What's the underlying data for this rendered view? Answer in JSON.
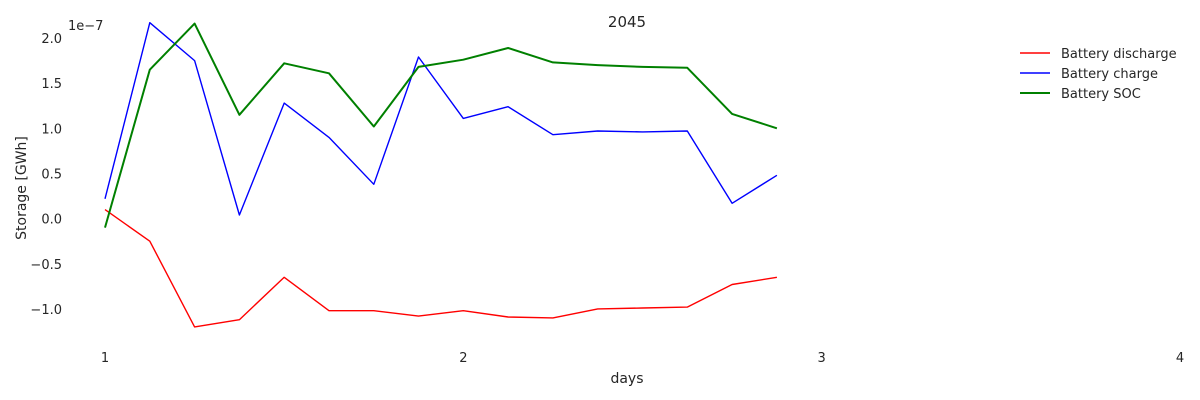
{
  "chart_data": {
    "type": "line",
    "title": "2045",
    "xlabel": "days",
    "ylabel": "Storage [GWh]",
    "y_multiplier": "1e−7",
    "xlim": [
      1,
      4
    ],
    "ylim": [
      -1.4,
      2.2
    ],
    "x_ticks": [
      "1",
      "2",
      "3",
      "4"
    ],
    "y_ticks": [
      "−1.0",
      "−0.5",
      "0.0",
      "0.5",
      "1.0",
      "1.5",
      "2.0"
    ],
    "y_tick_values": [
      -1.0,
      -0.5,
      0.0,
      0.5,
      1.0,
      1.5,
      2.0
    ],
    "grid": false,
    "legend_position": "top-right",
    "x": [
      1.0,
      1.125,
      1.25,
      1.375,
      1.5,
      1.625,
      1.75,
      1.875,
      2.0,
      2.125,
      2.25,
      2.375,
      2.5,
      2.625,
      2.75,
      2.875
    ],
    "series": [
      {
        "name": "Battery discharge",
        "color": "#ff0000",
        "values": [
          0.1,
          -0.25,
          -1.2,
          -1.12,
          -0.65,
          -1.02,
          -1.02,
          -1.08,
          -1.02,
          -1.09,
          -1.1,
          -1.0,
          -0.99,
          -0.98,
          -0.73,
          -0.65
        ]
      },
      {
        "name": "Battery charge",
        "color": "#0000ff",
        "values": [
          0.22,
          2.17,
          1.75,
          0.04,
          1.28,
          0.9,
          0.38,
          1.79,
          1.11,
          1.24,
          0.93,
          0.97,
          0.96,
          0.97,
          0.17,
          0.48
        ]
      },
      {
        "name": "Battery SOC",
        "color": "#008000",
        "values": [
          -0.1,
          1.65,
          2.16,
          1.15,
          1.72,
          1.61,
          1.02,
          1.68,
          1.76,
          1.89,
          1.73,
          1.7,
          1.68,
          1.67,
          1.16,
          1.0
        ]
      }
    ]
  }
}
